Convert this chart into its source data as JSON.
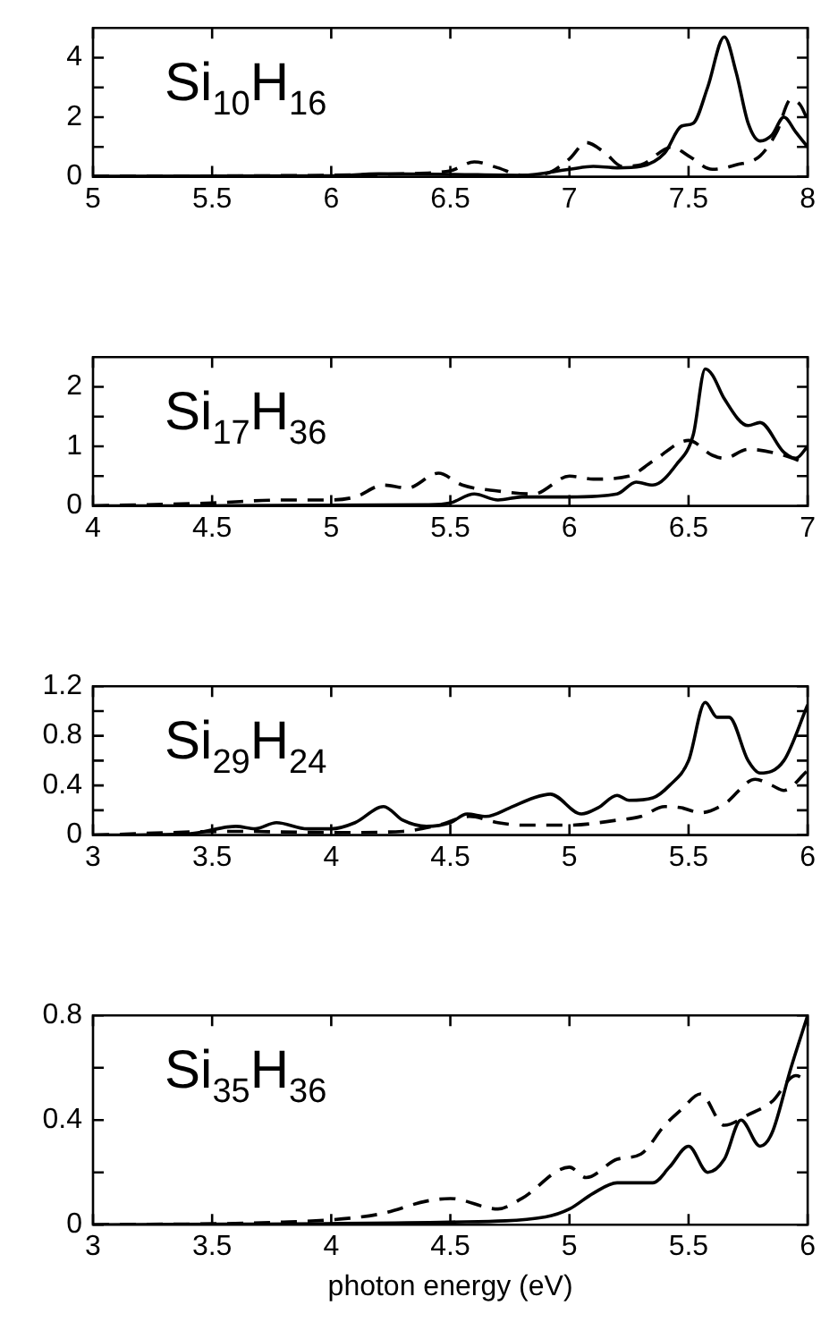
{
  "chart_data": [
    {
      "type": "line",
      "annotations": [
        "Si$_{10}$H$_{16}$"
      ],
      "xlim": [
        5,
        8
      ],
      "xticks": [
        5,
        5.5,
        6,
        6.5,
        7,
        7.5,
        8
      ],
      "ylim": [
        0,
        5
      ],
      "yticks": [
        0,
        {
          "value": 1,
          "label": null
        },
        2,
        {
          "value": 3,
          "label": null
        },
        4
      ],
      "grid": false,
      "legend": false,
      "marker": "none",
      "series": [
        {
          "color": "#000000",
          "line_style": "solid",
          "x": [
            5,
            6,
            6.2,
            6.5,
            6.8,
            7.0,
            7.1,
            7.2,
            7.3,
            7.4,
            7.47,
            7.52,
            7.58,
            7.65,
            7.7,
            7.75,
            7.8,
            7.85,
            7.9,
            7.95,
            8
          ],
          "values": [
            0.02,
            0.03,
            0.1,
            0.08,
            0.05,
            0.25,
            0.35,
            0.3,
            0.35,
            0.8,
            1.7,
            1.8,
            3.0,
            4.7,
            3.5,
            1.8,
            1.2,
            1.4,
            2.0,
            1.5,
            1.0
          ]
        },
        {
          "color": "#000000",
          "line_style": "dashed",
          "x": [
            5,
            6,
            6.3,
            6.5,
            6.6,
            6.7,
            6.8,
            6.9,
            7.0,
            7.07,
            7.15,
            7.22,
            7.3,
            7.43,
            7.5,
            7.6,
            7.7,
            7.8,
            7.87,
            7.93,
            7.97,
            8
          ],
          "values": [
            0.02,
            0.05,
            0.1,
            0.2,
            0.5,
            0.3,
            0.05,
            0.1,
            0.6,
            1.15,
            0.8,
            0.35,
            0.4,
            1.0,
            0.7,
            0.25,
            0.4,
            0.7,
            1.5,
            2.6,
            2.4,
            1.9
          ]
        }
      ]
    },
    {
      "type": "line",
      "annotations": [
        "Si$_{17}$H$_{36}$"
      ],
      "xlim": [
        4,
        7
      ],
      "xticks": [
        4,
        4.5,
        5,
        5.5,
        6,
        6.5,
        7
      ],
      "ylim": [
        0,
        2.5
      ],
      "yticks": [
        0,
        {
          "value": 0.5,
          "label": null
        },
        1,
        {
          "value": 1.5,
          "label": null
        },
        2
      ],
      "grid": false,
      "legend": false,
      "marker": "none",
      "series": [
        {
          "color": "#000000",
          "line_style": "solid",
          "x": [
            4,
            5.4,
            5.5,
            5.6,
            5.7,
            5.8,
            6.0,
            6.2,
            6.28,
            6.35,
            6.45,
            6.52,
            6.57,
            6.6,
            6.65,
            6.75,
            6.8,
            6.9,
            6.95,
            7
          ],
          "values": [
            0,
            0.02,
            0.05,
            0.2,
            0.1,
            0.15,
            0.15,
            0.2,
            0.4,
            0.35,
            0.7,
            1.2,
            2.3,
            2.2,
            1.8,
            1.35,
            1.4,
            0.9,
            0.8,
            1.0
          ]
        },
        {
          "color": "#000000",
          "line_style": "dashed",
          "x": [
            4,
            4.5,
            4.8,
            5,
            5.1,
            5.22,
            5.32,
            5.45,
            5.55,
            5.7,
            5.85,
            6.0,
            6.1,
            6.25,
            6.35,
            6.5,
            6.6,
            6.65,
            6.75,
            6.9,
            7
          ],
          "values": [
            0,
            0.05,
            0.1,
            0.1,
            0.15,
            0.35,
            0.3,
            0.55,
            0.35,
            0.25,
            0.2,
            0.5,
            0.45,
            0.5,
            0.75,
            1.1,
            0.85,
            0.8,
            0.95,
            0.85,
            0.7
          ]
        }
      ]
    },
    {
      "type": "line",
      "annotations": [
        "Si$_{29}$H$_{24}$"
      ],
      "xlim": [
        3,
        6
      ],
      "xticks": [
        3,
        3.5,
        4,
        4.5,
        5,
        5.5,
        6
      ],
      "ylim": [
        0,
        1.2
      ],
      "yticks": [
        0,
        {
          "value": 0.2,
          "label": null
        },
        0.4,
        {
          "value": 0.6,
          "label": null
        },
        0.8,
        {
          "value": 1.0,
          "label": null
        },
        1.2
      ],
      "grid": false,
      "legend": false,
      "marker": "none",
      "series": [
        {
          "color": "#000000",
          "line_style": "solid",
          "x": [
            3,
            3.4,
            3.6,
            3.68,
            3.77,
            3.9,
            4.0,
            4.1,
            4.22,
            4.3,
            4.4,
            4.5,
            4.57,
            4.65,
            4.75,
            4.85,
            4.92,
            5.05,
            5.12,
            5.2,
            5.25,
            5.35,
            5.42,
            5.5,
            5.57,
            5.62,
            5.67,
            5.75,
            5.8,
            5.9,
            6
          ],
          "values": [
            0,
            0.01,
            0.07,
            0.05,
            0.1,
            0.05,
            0.05,
            0.1,
            0.23,
            0.12,
            0.07,
            0.1,
            0.17,
            0.15,
            0.22,
            0.3,
            0.33,
            0.17,
            0.22,
            0.32,
            0.28,
            0.3,
            0.4,
            0.6,
            1.07,
            0.95,
            0.95,
            0.6,
            0.5,
            0.6,
            1.05
          ]
        },
        {
          "color": "#000000",
          "line_style": "dashed",
          "x": [
            3,
            3.6,
            4.0,
            4.3,
            4.45,
            4.58,
            4.7,
            4.8,
            5.0,
            5.2,
            5.3,
            5.4,
            5.47,
            5.55,
            5.65,
            5.78,
            5.85,
            5.9,
            6
          ],
          "values": [
            0,
            0.03,
            0.02,
            0.03,
            0.08,
            0.15,
            0.1,
            0.08,
            0.08,
            0.12,
            0.15,
            0.23,
            0.22,
            0.18,
            0.25,
            0.45,
            0.4,
            0.36,
            0.52
          ]
        }
      ]
    },
    {
      "type": "line",
      "annotations": [
        "Si$_{35}$H$_{36}$"
      ],
      "xlabel": "photon energy (eV)",
      "xlim": [
        3,
        6
      ],
      "xticks": [
        3,
        3.5,
        4,
        4.5,
        5,
        5.5,
        6
      ],
      "ylim": [
        0,
        0.8
      ],
      "yticks": [
        0,
        {
          "value": 0.2,
          "label": null
        },
        0.4,
        {
          "value": 0.6,
          "label": null
        },
        0.8
      ],
      "grid": false,
      "legend": false,
      "marker": "none",
      "series": [
        {
          "color": "#000000",
          "line_style": "solid",
          "x": [
            3,
            4.5,
            4.9,
            5.0,
            5.1,
            5.2,
            5.35,
            5.42,
            5.5,
            5.58,
            5.65,
            5.72,
            5.8,
            5.85,
            5.93,
            6
          ],
          "values": [
            0,
            0.01,
            0.03,
            0.06,
            0.12,
            0.16,
            0.16,
            0.22,
            0.3,
            0.2,
            0.25,
            0.4,
            0.3,
            0.35,
            0.6,
            0.8
          ]
        },
        {
          "color": "#000000",
          "line_style": "dashed",
          "x": [
            3,
            3.8,
            4.2,
            4.4,
            4.5,
            4.7,
            4.8,
            5.0,
            5.07,
            5.2,
            5.3,
            5.4,
            5.47,
            5.55,
            5.65,
            5.75,
            5.85,
            5.95,
            6
          ],
          "values": [
            0,
            0.01,
            0.04,
            0.09,
            0.1,
            0.06,
            0.1,
            0.22,
            0.18,
            0.25,
            0.27,
            0.38,
            0.44,
            0.5,
            0.38,
            0.42,
            0.47,
            0.57,
            0.55
          ]
        }
      ]
    }
  ]
}
